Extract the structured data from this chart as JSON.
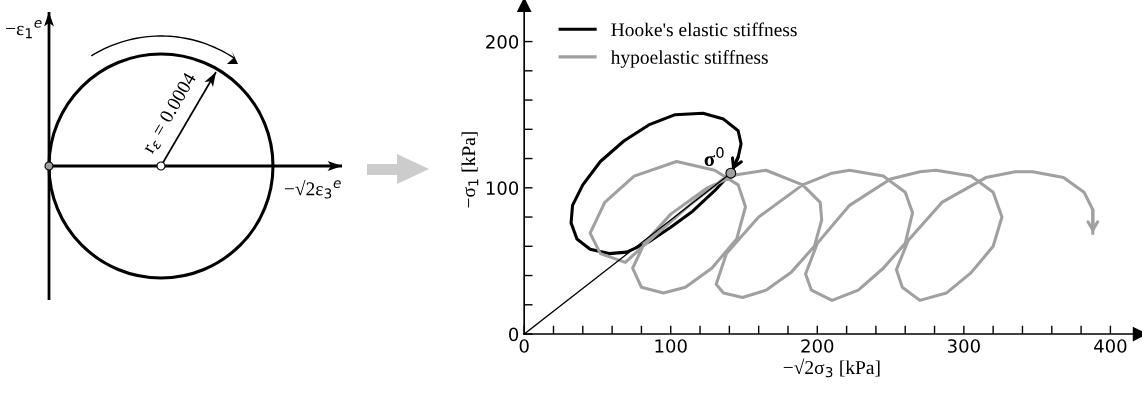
{
  "chart_data": [
    {
      "type": "other",
      "annotations": [
        "−ε$_{1}$$^{e}$",
        "−√2ε$_{3}$$^{e}$",
        "r$_{ε}$ = 0.0004"
      ]
    },
    {
      "type": "line",
      "xlabel": "−√2σ$_{3}$ [kPa]",
      "ylabel": "−σ$_{1}$ [kPa]",
      "xlim": [
        0,
        420
      ],
      "ylim": [
        0,
        225
      ],
      "xticks": [
        0,
        {
          "value": 20,
          "label": null
        },
        {
          "value": 40,
          "label": null
        },
        {
          "value": 60,
          "label": null
        },
        {
          "value": 80,
          "label": null
        },
        100,
        {
          "value": 120,
          "label": null
        },
        {
          "value": 140,
          "label": null
        },
        {
          "value": 160,
          "label": null
        },
        {
          "value": 180,
          "label": null
        },
        200,
        {
          "value": 220,
          "label": null
        },
        {
          "value": 240,
          "label": null
        },
        {
          "value": 260,
          "label": null
        },
        {
          "value": 280,
          "label": null
        },
        300,
        {
          "value": 320,
          "label": null
        },
        {
          "value": 340,
          "label": null
        },
        {
          "value": 360,
          "label": null
        },
        {
          "value": 380,
          "label": null
        },
        400
      ],
      "yticks": [
        0,
        {
          "value": 20,
          "label": null
        },
        {
          "value": 40,
          "label": null
        },
        {
          "value": 60,
          "label": null
        },
        {
          "value": 80,
          "label": null
        },
        100,
        {
          "value": 120,
          "label": null
        },
        {
          "value": 140,
          "label": null
        },
        {
          "value": 160,
          "label": null
        },
        {
          "value": 180,
          "label": null
        },
        200
      ],
      "legend": "top left",
      "grid": false,
      "annotations": [
        {
          "text": "σ$^{0}$",
          "x": 141,
          "y": 110
        }
      ],
      "series": [
        {
          "name": "Hooke's elastic stiffness",
          "color": "#000000",
          "x": [
            141,
            130,
            115,
            100,
            85,
            70,
            58,
            45,
            36,
            32,
            33,
            40,
            52,
            68,
            85,
            103,
            122,
            136,
            146,
            148,
            146,
            142
          ],
          "values": [
            110,
            98,
            84,
            73,
            63,
            56,
            55,
            58,
            65,
            76,
            88,
            102,
            118,
            132,
            143,
            150,
            151,
            147,
            139,
            130,
            121,
            112
          ]
        },
        {
          "name": "hypoelastic stiffness",
          "color": "#a0a0a0",
          "x": [
            141,
            115,
            90,
            69,
            52,
            45,
            55,
            75,
            104,
            130,
            146,
            151,
            145,
            128,
            110,
            95,
            80,
            74,
            82,
            100,
            125,
            145,
            165,
            190,
            202,
            203,
            198,
            182,
            165,
            149,
            136,
            131,
            138,
            160,
            190,
            210,
            222,
            245,
            260,
            265,
            260,
            245,
            228,
            210,
            196,
            192,
            200,
            222,
            250,
            270,
            281,
            305,
            320,
            326,
            320,
            305,
            288,
            270,
            258,
            254,
            262,
            285,
            315,
            335,
            347,
            368,
            382,
            388,
            388
          ],
          "values": [
            110,
            90,
            68,
            49,
            55,
            69,
            90,
            108,
            118,
            112,
            102,
            87,
            65,
            45,
            32,
            28,
            32,
            45,
            62,
            82,
            100,
            109,
            112,
            102,
            90,
            78,
            60,
            42,
            30,
            25,
            28,
            34,
            55,
            80,
            102,
            110,
            112,
            108,
            97,
            83,
            62,
            45,
            30,
            23,
            30,
            41,
            62,
            88,
            106,
            111,
            112,
            108,
            97,
            80,
            60,
            42,
            28,
            23,
            32,
            44,
            64,
            90,
            107,
            111,
            111,
            107,
            97,
            85,
            69
          ]
        },
        {
          "color": "#000000",
          "x": [
            0,
            141
          ],
          "values": [
            0,
            110
          ]
        },
        {
          "type": "scatter",
          "color": "#a0a0a0",
          "marker": "circle",
          "x": [
            141
          ],
          "values": [
            110
          ]
        }
      ]
    }
  ]
}
